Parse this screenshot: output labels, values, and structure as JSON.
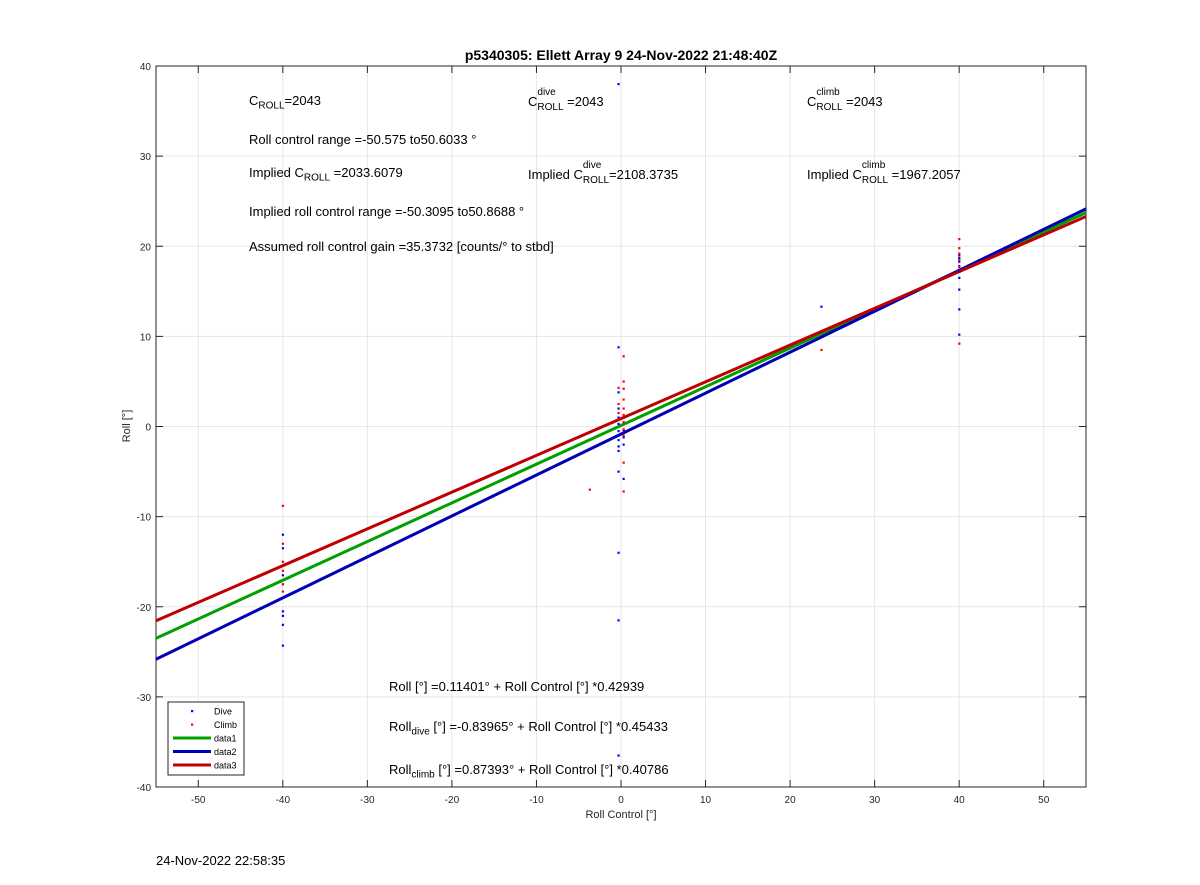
{
  "chart_data": {
    "type": "scatter",
    "title": "p5340305: Ellett Array 9 24-Nov-2022 21:48:40Z",
    "xlabel": "Roll Control [°]",
    "ylabel": "Roll [°]",
    "xlim": [
      -55,
      55
    ],
    "ylim": [
      -40,
      40
    ],
    "xticks": [
      -50,
      -40,
      -30,
      -20,
      -10,
      0,
      10,
      20,
      30,
      40,
      50
    ],
    "yticks": [
      -40,
      -30,
      -20,
      -10,
      0,
      10,
      20,
      30,
      40
    ],
    "grid": true,
    "legend_position": "bottom-left",
    "series": [
      {
        "name": "Dive",
        "kind": "points",
        "color": "#0000ff",
        "points": [
          [
            -40,
            -12
          ],
          [
            -40,
            -13.5
          ],
          [
            -40,
            -16.5
          ],
          [
            -40,
            -17.5
          ],
          [
            -40,
            -19
          ],
          [
            -40,
            -20.5
          ],
          [
            -40,
            -21
          ],
          [
            -40,
            -22
          ],
          [
            -40,
            -24.3
          ],
          [
            -0.3,
            38
          ],
          [
            -0.3,
            8.8
          ],
          [
            -0.3,
            3.8
          ],
          [
            -0.3,
            2
          ],
          [
            -0.3,
            1
          ],
          [
            -0.3,
            0.3
          ],
          [
            -0.3,
            -0.5
          ],
          [
            -0.3,
            -1
          ],
          [
            -0.3,
            -1.5
          ],
          [
            -0.3,
            -2.2
          ],
          [
            -0.3,
            -2.7
          ],
          [
            -0.3,
            -5
          ],
          [
            -0.3,
            -14
          ],
          [
            -0.3,
            -21.5
          ],
          [
            -0.3,
            -36.5
          ],
          [
            0.3,
            -0.4
          ],
          [
            0.3,
            -1.2
          ],
          [
            0.3,
            -2
          ],
          [
            0.3,
            -5.8
          ],
          [
            23.7,
            13.3
          ],
          [
            40,
            10.2
          ],
          [
            40,
            13
          ],
          [
            40,
            15.2
          ],
          [
            40,
            16.5
          ],
          [
            40,
            17.2
          ],
          [
            40,
            17.8
          ],
          [
            40,
            18.3
          ],
          [
            40,
            18.7
          ],
          [
            40,
            19
          ]
        ]
      },
      {
        "name": "Climb",
        "kind": "points",
        "color": "#ff0000",
        "points": [
          [
            -40,
            -8.8
          ],
          [
            -40,
            -13
          ],
          [
            -40,
            -15
          ],
          [
            -40,
            -16
          ],
          [
            -40,
            -17.5
          ],
          [
            -40,
            -18.3
          ],
          [
            -3.7,
            -7
          ],
          [
            0.3,
            7.8
          ],
          [
            0.3,
            5
          ],
          [
            0.3,
            4.2
          ],
          [
            0.3,
            3
          ],
          [
            0.3,
            2
          ],
          [
            0.3,
            1.3
          ],
          [
            0.3,
            0.5
          ],
          [
            0.3,
            -0.3
          ],
          [
            0.3,
            -1
          ],
          [
            0.3,
            -4
          ],
          [
            0.3,
            -7.2
          ],
          [
            -0.3,
            4.3
          ],
          [
            -0.3,
            2.5
          ],
          [
            -0.3,
            1.5
          ],
          [
            -0.3,
            0.8
          ],
          [
            23.7,
            8.5
          ],
          [
            40,
            20.8
          ],
          [
            40,
            19.8
          ],
          [
            40,
            19.2
          ],
          [
            40,
            18.5
          ],
          [
            40,
            17.7
          ],
          [
            40,
            9.2
          ]
        ]
      },
      {
        "name": "data1",
        "kind": "line",
        "color": "#00a000",
        "intercept": 0.11401,
        "slope": 0.42939
      },
      {
        "name": "data2",
        "kind": "line",
        "color": "#0000b4",
        "intercept": -0.83965,
        "slope": 0.45433
      },
      {
        "name": "data3",
        "kind": "line",
        "color": "#c00000",
        "intercept": 0.87393,
        "slope": 0.40786
      }
    ]
  },
  "annotations": {
    "croll": {
      "c": "C",
      "sub": "ROLL",
      "value": "=2043"
    },
    "croll_dive": {
      "c": "C",
      "sup": "dive",
      "sub": "ROLL",
      "value": " =2043"
    },
    "croll_climb": {
      "c": "C",
      "sup": "climb",
      "sub": "ROLL",
      "value": " =2043"
    },
    "roll_range": "Roll control range =-50.575 to50.6033 °",
    "implied_croll": {
      "prefix": "Implied C",
      "sub": "ROLL",
      "value": " =2033.6079"
    },
    "implied_croll_dive": {
      "prefix": "Implied C",
      "sup": "dive",
      "sub": "ROLL",
      "value": "=2108.3735"
    },
    "implied_croll_climb": {
      "prefix": "Implied C",
      "sup": "climb",
      "sub": "ROLL",
      "value": " =1967.2057"
    },
    "implied_range": "Implied roll control range =-50.3095 to50.8688 °",
    "gain": "Assumed roll control gain =35.3732 [counts/° to stbd]",
    "fit_all": "Roll [°] =0.11401° + Roll Control [°] *0.42939",
    "fit_dive": {
      "prefix": "Roll",
      "sub": "dive",
      "rest": " [°] =-0.83965° + Roll Control [°] *0.45433"
    },
    "fit_climb": {
      "prefix": "Roll",
      "sub": "climb",
      "rest": " [°] =0.87393° + Roll Control [°] *0.40786"
    }
  },
  "timestamp": "24-Nov-2022 22:58:35"
}
